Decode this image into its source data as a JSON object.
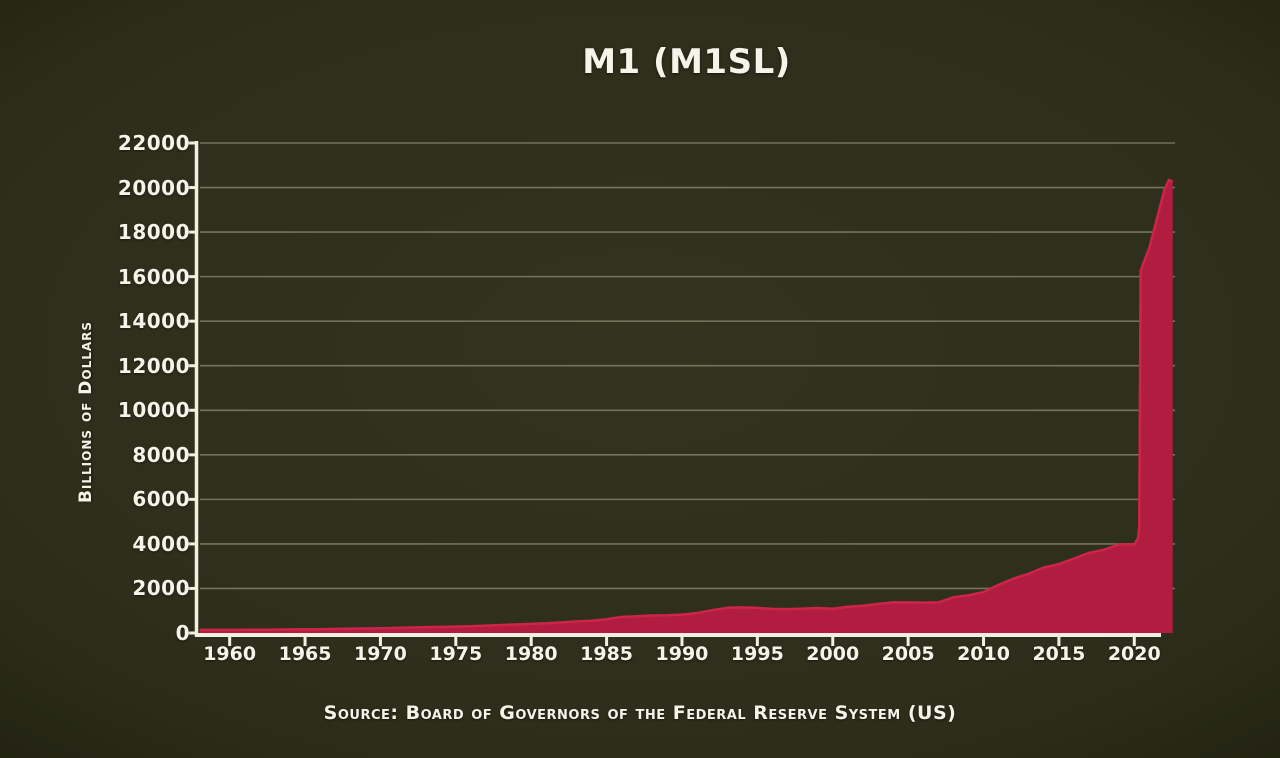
{
  "chart_data": {
    "type": "area",
    "title": "M1 (M1SL)",
    "ylabel": "Billions of Dollars",
    "source": "Source: Board of Governors of the Federal Reserve System (US)",
    "legend": "none",
    "grid": "horizontal",
    "x_ticks": [
      1960,
      1965,
      1970,
      1975,
      1980,
      1985,
      1990,
      1995,
      2000,
      2005,
      2010,
      2015,
      2020
    ],
    "y_ticks": [
      0,
      2000,
      4000,
      6000,
      8000,
      10000,
      12000,
      14000,
      16000,
      18000,
      20000,
      22000
    ],
    "xlim": [
      1957.9,
      2022.7
    ],
    "ylim": [
      0,
      22000
    ],
    "series": [
      {
        "name": "M1SL",
        "units": "Billions of Dollars",
        "points": [
          [
            1958,
            138
          ],
          [
            1959,
            139
          ],
          [
            1960,
            140
          ],
          [
            1961,
            145
          ],
          [
            1962,
            147
          ],
          [
            1963,
            153
          ],
          [
            1964,
            160
          ],
          [
            1965,
            167
          ],
          [
            1966,
            172
          ],
          [
            1967,
            183
          ],
          [
            1968,
            197
          ],
          [
            1969,
            204
          ],
          [
            1970,
            214
          ],
          [
            1971,
            228
          ],
          [
            1972,
            249
          ],
          [
            1973,
            263
          ],
          [
            1974,
            274
          ],
          [
            1975,
            287
          ],
          [
            1976,
            306
          ],
          [
            1977,
            331
          ],
          [
            1978,
            358
          ],
          [
            1979,
            382
          ],
          [
            1980,
            409
          ],
          [
            1981,
            436
          ],
          [
            1982,
            474
          ],
          [
            1983,
            521
          ],
          [
            1984,
            552
          ],
          [
            1985,
            620
          ],
          [
            1986,
            724
          ],
          [
            1987,
            750
          ],
          [
            1988,
            787
          ],
          [
            1989,
            794
          ],
          [
            1990,
            825
          ],
          [
            1991,
            897
          ],
          [
            1992,
            1025
          ],
          [
            1993,
            1130
          ],
          [
            1994,
            1150
          ],
          [
            1995,
            1127
          ],
          [
            1996,
            1081
          ],
          [
            1997,
            1071
          ],
          [
            1998,
            1095
          ],
          [
            1999,
            1122
          ],
          [
            2000,
            1088
          ],
          [
            2001,
            1183
          ],
          [
            2002,
            1220
          ],
          [
            2003,
            1306
          ],
          [
            2004,
            1376
          ],
          [
            2005,
            1374
          ],
          [
            2006,
            1366
          ],
          [
            2007,
            1373
          ],
          [
            2008,
            1604
          ],
          [
            2009,
            1695
          ],
          [
            2010,
            1837
          ],
          [
            2011,
            2164
          ],
          [
            2012,
            2446
          ],
          [
            2013,
            2661
          ],
          [
            2014,
            2940
          ],
          [
            2015,
            3094
          ],
          [
            2016,
            3342
          ],
          [
            2017,
            3601
          ],
          [
            2018,
            3742
          ],
          [
            2019,
            3977
          ],
          [
            2020.0,
            3980
          ],
          [
            2020.25,
            4261
          ],
          [
            2020.33,
            4792
          ],
          [
            2020.42,
            16242
          ],
          [
            2020.6,
            16600
          ],
          [
            2021.0,
            17300
          ],
          [
            2021.5,
            18600
          ],
          [
            2022.0,
            19900
          ],
          [
            2022.3,
            20350
          ],
          [
            2022.55,
            20250
          ]
        ]
      }
    ],
    "colors": {
      "background": "#2d2e1b",
      "area_fill": "#b01d40",
      "area_line": "#ce2449",
      "gridline": "#7b7a62",
      "axis": "#f3f0e2",
      "text": "#f6f3e9"
    }
  }
}
